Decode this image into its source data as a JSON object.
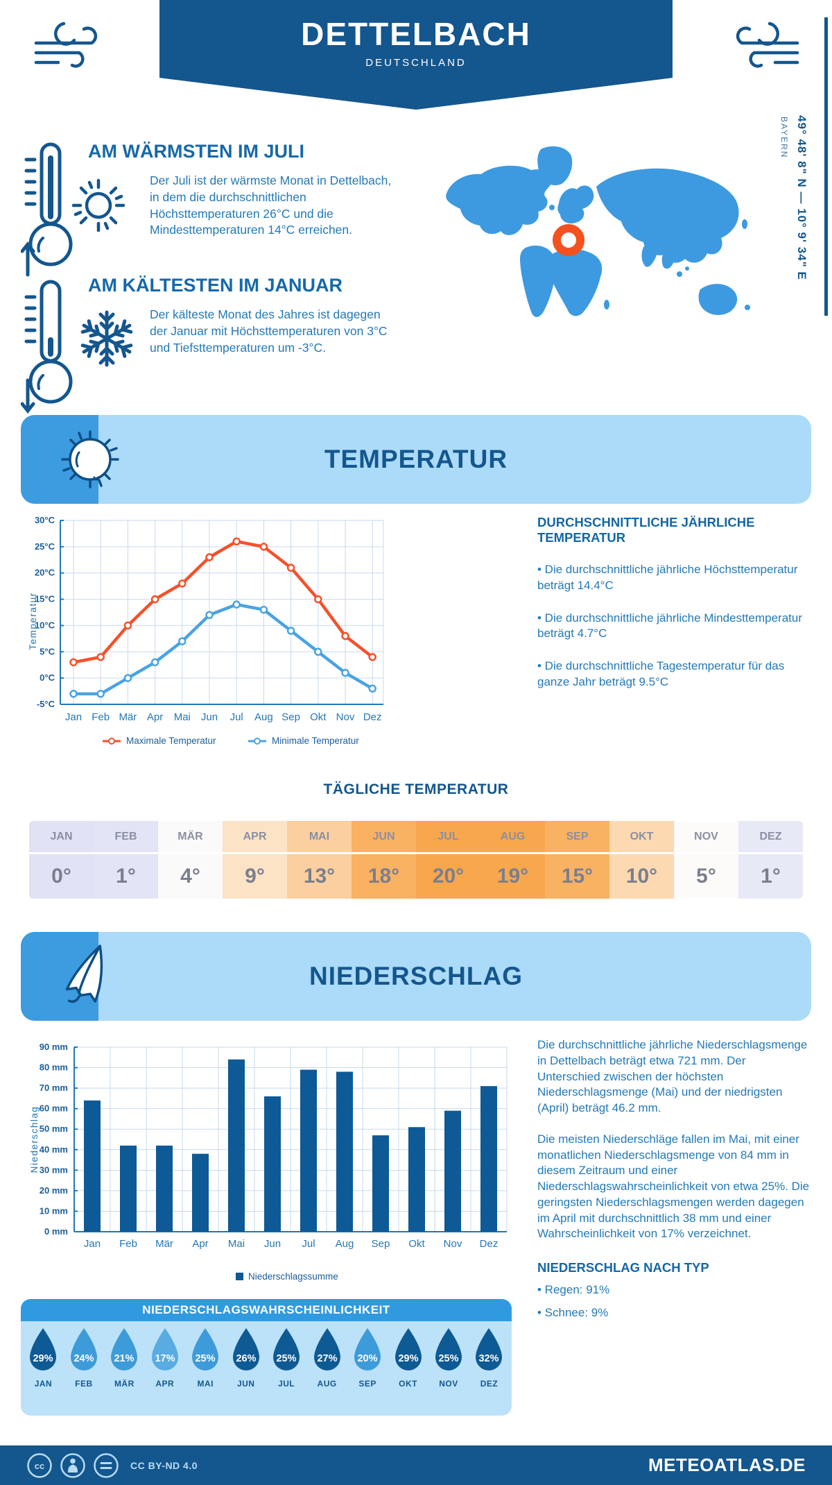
{
  "header": {
    "title": "DETTELBACH",
    "subtitle": "DEUTSCHLAND"
  },
  "location": {
    "coordinates": "49° 48' 8\" N — 10° 9' 34\" E",
    "region": "BAYERN"
  },
  "warmest": {
    "heading": "AM WÄRMSTEN IM JULI",
    "text": "Der Juli ist der wärmste Monat in Dettelbach, in dem die durchschnittlichen Höchsttemperaturen 26°C und die Mindesttemperaturen 14°C erreichen."
  },
  "coldest": {
    "heading": "AM KÄLTESTEN IM JANUAR",
    "text": "Der kälteste Monat des Jahres ist dagegen der Januar mit Höchsttemperaturen von 3°C und Tiefsttemperaturen um -3°C."
  },
  "months_upper": [
    "JAN",
    "FEB",
    "MÄR",
    "APR",
    "MAI",
    "JUN",
    "JUL",
    "AUG",
    "SEP",
    "OKT",
    "NOV",
    "DEZ"
  ],
  "temperature": {
    "band_title": "TEMPERATUR",
    "annual_heading": "DURCHSCHNITTLICHE JÄHRLICHE TEMPERATUR",
    "bullets": [
      "• Die durchschnittliche jährliche Höchsttemperatur beträgt 14.4°C",
      "• Die durchschnittliche jährliche Mindesttemperatur beträgt 4.7°C",
      "• Die durchschnittliche Tagestemperatur für das ganze Jahr beträgt 9.5°C"
    ],
    "daily_title": "TÄGLICHE TEMPERATUR",
    "daily": {
      "values": [
        "0°",
        "1°",
        "4°",
        "9°",
        "13°",
        "18°",
        "20°",
        "19°",
        "15°",
        "10°",
        "5°",
        "1°"
      ],
      "cell_colors": [
        "#e1e2f5",
        "#e3e4f6",
        "#fbfafa",
        "#fce3c6",
        "#fbcf9f",
        "#f9b162",
        "#f8a74d",
        "#f8a74d",
        "#f9b162",
        "#fcd9b1",
        "#fcfbfa",
        "#e8e9f7"
      ]
    }
  },
  "precipitation": {
    "band_title": "NIEDERSCHLAG",
    "paragraphs": [
      "Die durchschnittliche jährliche Niederschlagsmenge in Dettelbach beträgt etwa 721 mm. Der Unterschied zwischen der höchsten Niederschlagsmenge (Mai) und der niedrigsten (April) beträgt 46.2 mm.",
      "Die meisten Niederschläge fallen im Mai, mit einer monatlichen Niederschlagsmenge von 84 mm in diesem Zeitraum und einer Niederschlagswahrscheinlichkeit von etwa 25%. Die geringsten Niederschlagsmengen werden dagegen im April mit durchschnittlich 38 mm und einer Wahrscheinlichkeit von 17% verzeichnet."
    ],
    "type_heading": "NIEDERSCHLAG NACH TYP",
    "type_items": [
      "• Regen: 91%",
      "• Schnee: 9%"
    ],
    "probability": {
      "title": "NIEDERSCHLAGSWAHRSCHEINLICHKEIT",
      "values": [
        "29%",
        "24%",
        "21%",
        "17%",
        "25%",
        "26%",
        "25%",
        "27%",
        "20%",
        "29%",
        "25%",
        "32%"
      ],
      "shades": [
        "dark",
        "mid",
        "mid",
        "light",
        "mid",
        "dark",
        "dark",
        "dark",
        "mid",
        "dark",
        "dark",
        "dark"
      ],
      "shade_colors": {
        "dark": "#0e5a95",
        "mid": "#3e9bd9",
        "light": "#58ace2"
      }
    }
  },
  "footer": {
    "license": "CC BY-ND 4.0",
    "brand": "METEOATLAS.DE"
  },
  "colors": {
    "navy": "#14568e",
    "heading_blue": "#1569a9",
    "body_blue": "#2379b7",
    "band_bg": "#abdbf8",
    "icon_square": "#3d9be0",
    "grid": "#c7d9ee",
    "axis": "#2377b5",
    "tick_text": "#1b5e9b",
    "map_blue": "#3d9ae0",
    "marker_orange": "#f4511e",
    "bar": "#0d5a96"
  },
  "chart_data": [
    {
      "type": "line",
      "title": "Temperatur",
      "categories": [
        "Jan",
        "Feb",
        "Mär",
        "Apr",
        "Mai",
        "Jun",
        "Jul",
        "Aug",
        "Sep",
        "Okt",
        "Nov",
        "Dez"
      ],
      "series": [
        {
          "name": "Maximale Temperatur",
          "color": "#f4512c",
          "values": [
            3,
            4,
            10,
            15,
            18,
            23,
            26,
            25,
            21,
            15,
            8,
            4
          ]
        },
        {
          "name": "Minimale Temperatur",
          "color": "#4aa3e2",
          "values": [
            -3,
            -3,
            0,
            3,
            7,
            12,
            14,
            13,
            9,
            5,
            1,
            -2
          ]
        }
      ],
      "xlabel": "",
      "ylabel": "Temperatur",
      "ylim": [
        -5,
        30
      ],
      "ytick_step": 5,
      "ytick_suffix": "°C",
      "grid": true,
      "legend_position": "bottom"
    },
    {
      "type": "bar",
      "title": "Niederschlag",
      "categories": [
        "Jan",
        "Feb",
        "Mär",
        "Apr",
        "Mai",
        "Jun",
        "Jul",
        "Aug",
        "Sep",
        "Okt",
        "Nov",
        "Dez"
      ],
      "values": [
        64,
        42,
        42,
        38,
        84,
        66,
        79,
        78,
        47,
        51,
        59,
        71
      ],
      "series_name": "Niederschlagssumme",
      "xlabel": "",
      "ylabel": "Niederschlag",
      "ylim": [
        0,
        90
      ],
      "ytick_step": 10,
      "ytick_suffix": " mm",
      "bar_color": "#0d5a96",
      "grid": true,
      "legend_position": "bottom"
    }
  ]
}
